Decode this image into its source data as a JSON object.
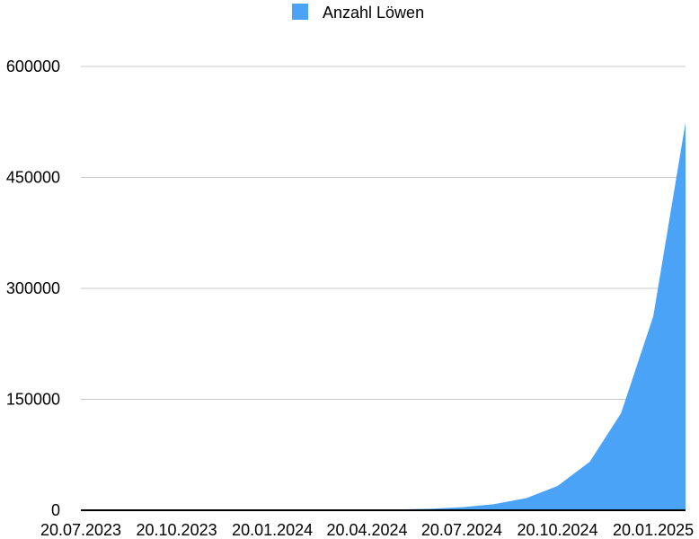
{
  "chart_data": {
    "type": "area",
    "title": "",
    "xlabel": "",
    "ylabel": "",
    "legend": {
      "position": "top-center",
      "entries": [
        "Anzahl Löwen"
      ]
    },
    "grid": true,
    "ylim": [
      0,
      600000
    ],
    "y_ticks": [
      "0",
      "150000",
      "300000",
      "450000",
      "600000"
    ],
    "x_tick_labels": [
      "20.07.2023",
      "20.10.2023",
      "20.01.2024",
      "20.04.2024",
      "20.07.2024",
      "20.10.2024",
      "20.01.2025"
    ],
    "x": [
      "20.07.2023",
      "20.08.2023",
      "20.09.2023",
      "20.10.2023",
      "20.11.2023",
      "20.12.2023",
      "20.01.2024",
      "20.02.2024",
      "20.03.2024",
      "20.04.2024",
      "20.05.2024",
      "20.06.2024",
      "20.07.2024",
      "20.08.2024",
      "20.09.2024",
      "20.10.2024",
      "20.11.2024",
      "20.12.2024",
      "20.01.2025",
      "20.02.2025"
    ],
    "series": [
      {
        "name": "Anzahl Löwen",
        "color": "#4aa3f7",
        "values": [
          1,
          2,
          4,
          8,
          16,
          32,
          64,
          128,
          256,
          512,
          1024,
          2048,
          4096,
          8192,
          16384,
          32768,
          65536,
          131072,
          262144,
          524288
        ]
      }
    ]
  }
}
